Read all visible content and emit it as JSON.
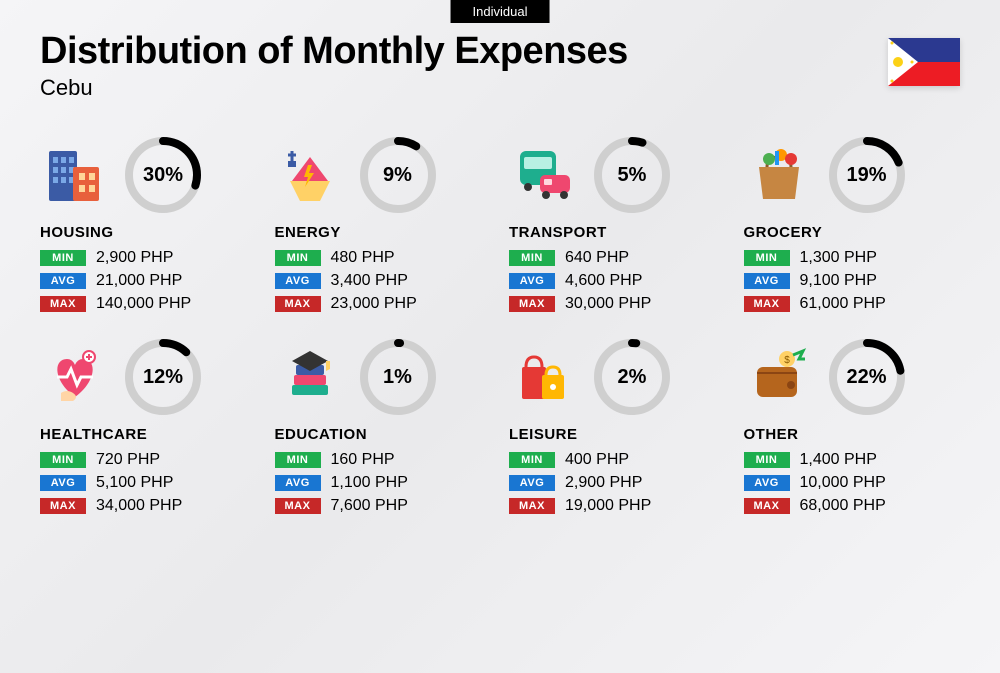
{
  "header": {
    "badge": "Individual",
    "title": "Distribution of Monthly Expenses",
    "subtitle": "Cebu",
    "flag": {
      "blue": "#2b3990",
      "red": "#ed1c24",
      "white": "#ffffff",
      "yellow": "#fcd116"
    }
  },
  "labels": {
    "min": "MIN",
    "avg": "AVG",
    "max": "MAX"
  },
  "donut": {
    "track_color": "#cfcfcf",
    "progress_color": "#000000",
    "stroke_width": 8,
    "radius": 34
  },
  "badge_colors": {
    "min": "#1eae4e",
    "avg": "#1976d2",
    "max": "#c62828"
  },
  "categories": [
    {
      "key": "housing",
      "name": "HOUSING",
      "percent": 30,
      "percent_label": "30%",
      "min": "2,900 PHP",
      "avg": "21,000 PHP",
      "max": "140,000 PHP"
    },
    {
      "key": "energy",
      "name": "ENERGY",
      "percent": 9,
      "percent_label": "9%",
      "min": "480 PHP",
      "avg": "3,400 PHP",
      "max": "23,000 PHP"
    },
    {
      "key": "transport",
      "name": "TRANSPORT",
      "percent": 5,
      "percent_label": "5%",
      "min": "640 PHP",
      "avg": "4,600 PHP",
      "max": "30,000 PHP"
    },
    {
      "key": "grocery",
      "name": "GROCERY",
      "percent": 19,
      "percent_label": "19%",
      "min": "1,300 PHP",
      "avg": "9,100 PHP",
      "max": "61,000 PHP"
    },
    {
      "key": "healthcare",
      "name": "HEALTHCARE",
      "percent": 12,
      "percent_label": "12%",
      "min": "720 PHP",
      "avg": "5,100 PHP",
      "max": "34,000 PHP"
    },
    {
      "key": "education",
      "name": "EDUCATION",
      "percent": 1,
      "percent_label": "1%",
      "min": "160 PHP",
      "avg": "1,100 PHP",
      "max": "7,600 PHP"
    },
    {
      "key": "leisure",
      "name": "LEISURE",
      "percent": 2,
      "percent_label": "2%",
      "min": "400 PHP",
      "avg": "2,900 PHP",
      "max": "19,000 PHP"
    },
    {
      "key": "other",
      "name": "OTHER",
      "percent": 22,
      "percent_label": "22%",
      "min": "1,400 PHP",
      "avg": "10,000 PHP",
      "max": "68,000 PHP"
    }
  ]
}
